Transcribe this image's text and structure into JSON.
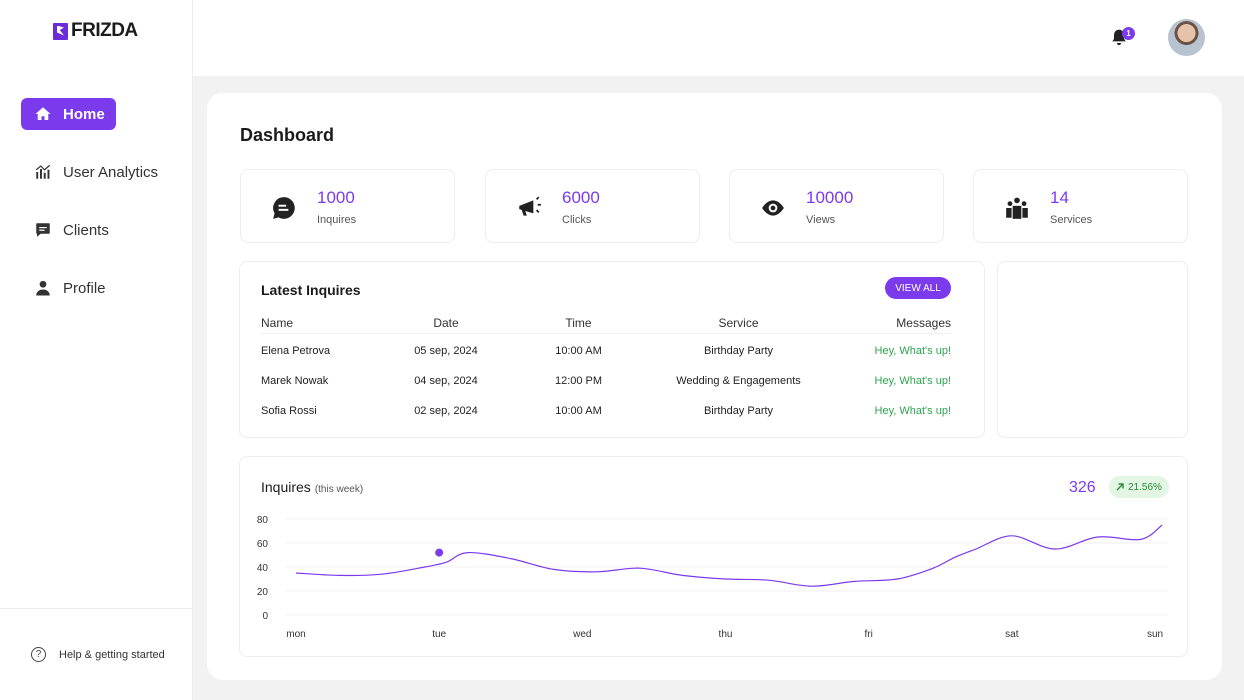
{
  "brand": {
    "name": "FRIZDA"
  },
  "nav": [
    {
      "label": "Home",
      "icon": "home-icon",
      "active": true
    },
    {
      "label": "User Analytics",
      "icon": "analytics-icon",
      "active": false
    },
    {
      "label": "Clients",
      "icon": "chat-icon",
      "active": false
    },
    {
      "label": "Profile",
      "icon": "user-icon",
      "active": false
    }
  ],
  "help": {
    "label": "Help & getting started",
    "icon_glyph": "?"
  },
  "header": {
    "notification_count": "1"
  },
  "page": {
    "title": "Dashboard"
  },
  "stats": [
    {
      "value": "1000",
      "label": "Inquires",
      "icon": "message-icon"
    },
    {
      "value": "6000",
      "label": "Clicks",
      "icon": "megaphone-icon"
    },
    {
      "value": "10000",
      "label": "Views",
      "icon": "eye-icon"
    },
    {
      "value": "14",
      "label": "Services",
      "icon": "group-icon"
    }
  ],
  "latest": {
    "title": "Latest Inquires",
    "view_all": "VIEW ALL",
    "columns": {
      "name": "Name",
      "date": "Date",
      "time": "Time",
      "service": "Service",
      "messages": "Messages"
    },
    "rows": [
      {
        "name": "Elena Petrova",
        "date": "05 sep, 2024",
        "time": "10:00 AM",
        "service": "Birthday Party",
        "message": "Hey, What's up!"
      },
      {
        "name": "Marek Nowak",
        "date": "04 sep, 2024",
        "time": "12:00 PM",
        "service": "Wedding & Engagements",
        "message": "Hey, What's up!"
      },
      {
        "name": "Sofia Rossi",
        "date": "02 sep, 2024",
        "time": "10:00 AM",
        "service": "Birthday Party",
        "message": "Hey, What's up!"
      }
    ]
  },
  "inquires_chart": {
    "title": "Inquires",
    "subtitle": "(this week)",
    "total": "326",
    "change": "21.56%"
  },
  "chart_data": {
    "type": "line",
    "categories": [
      "mon",
      "tue",
      "wed",
      "thu",
      "fri",
      "sat",
      "sun"
    ],
    "series": [
      {
        "x": [
          0,
          0.3,
          0.6,
          0.9,
          1.05,
          1.2,
          1.5,
          1.8,
          2.1,
          2.4,
          2.7,
          3.0,
          3.3,
          3.6,
          3.9,
          4.2,
          4.45,
          4.6,
          4.75,
          5.0,
          5.3,
          5.6,
          5.9,
          6.05
        ],
        "values": [
          35,
          33,
          34,
          40,
          44,
          52,
          47,
          38,
          36,
          39,
          33,
          30,
          29,
          24,
          28,
          30,
          39,
          48,
          55,
          66,
          55,
          65,
          63,
          75
        ],
        "color": "#7c3aed"
      }
    ],
    "highlight": {
      "x": 1.0,
      "value": 52
    },
    "yticks": [
      0,
      20,
      40,
      60,
      80
    ],
    "ylim": [
      0,
      80
    ],
    "grid": true,
    "line_color": "#7c3aed"
  }
}
